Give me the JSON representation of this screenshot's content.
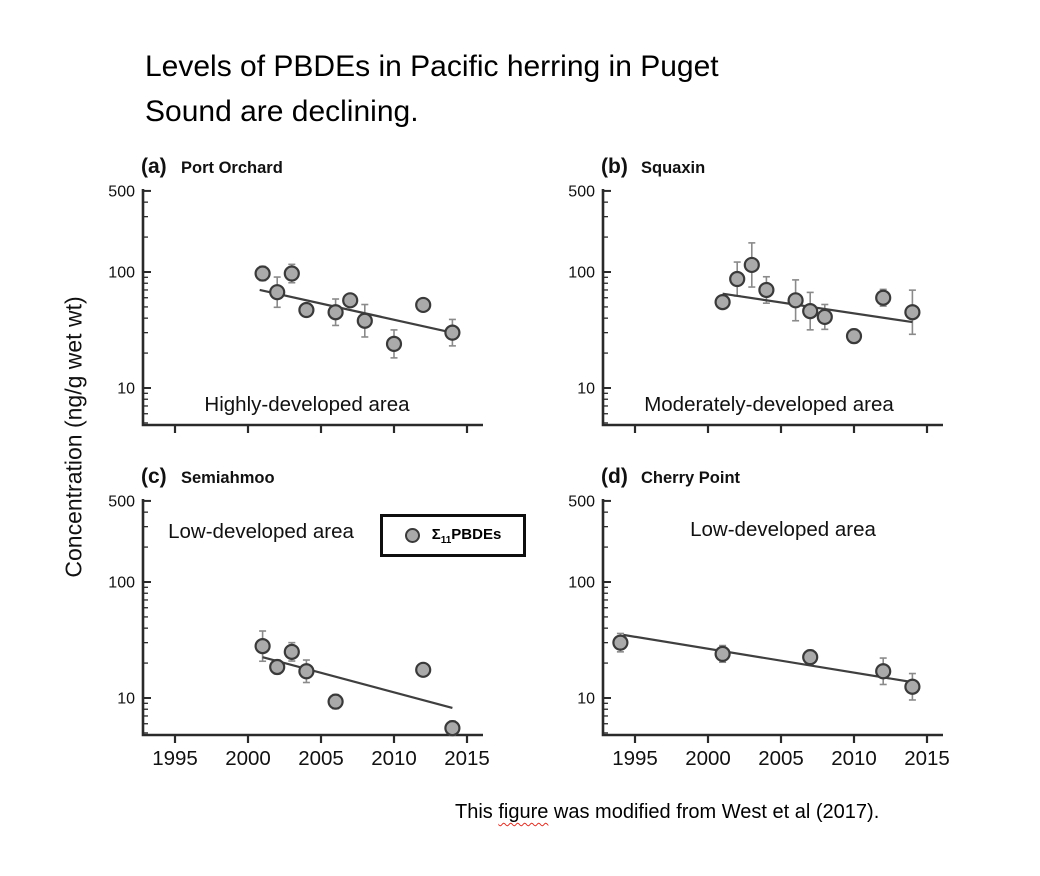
{
  "slide": {
    "title_line1": "Levels of PBDEs in Pacific herring in Puget",
    "title_line2": "Sound are declining.",
    "ylabel": "Concentration (ng/g wet wt)",
    "caption_pre": "This ",
    "caption_word": "figure",
    "caption_post": " was modified from West et al (2017)."
  },
  "legend": {
    "sigma": "Σ",
    "sub": "11",
    "rest": "PBDEs"
  },
  "colors": {
    "marker_fill": "#aaaaaa",
    "marker_stroke": "#3a3a3a",
    "trend_line": "#3f3f3f",
    "error_bar": "#8a8a8a",
    "axis": "#2a2a2a",
    "text": "#111111"
  },
  "chart_data": {
    "type": "scatter",
    "y_scale": "log",
    "ylabel": "Concentration (ng/g wet wt)",
    "x_ticks": [
      1995,
      2000,
      2005,
      2010,
      2015
    ],
    "y_ticks": [
      500,
      100,
      10
    ],
    "y_minor_ticks": [
      400,
      300,
      200,
      90,
      80,
      70,
      60,
      50,
      40,
      30,
      20,
      9,
      8,
      7,
      6,
      5
    ],
    "x_range": [
      1992.8,
      2016.1
    ],
    "y_range": [
      4.8,
      620
    ],
    "grid": false,
    "legend_position": "panel-c-inside",
    "series_name": "Σ11PBDEs",
    "panels": [
      {
        "id": "a",
        "tag": "(a)",
        "name": "Port Orchard",
        "area_label": "Highly-developed area",
        "show_x_labels": false,
        "points": [
          [
            2001,
            97,
            0.15
          ],
          [
            2002,
            67,
            0.35
          ],
          [
            2003,
            97,
            0.2
          ],
          [
            2004,
            47,
            0.12
          ],
          [
            2006,
            45,
            0.3
          ],
          [
            2007,
            57,
            0.12
          ],
          [
            2008,
            38,
            0.38
          ],
          [
            2010,
            24,
            0.32
          ],
          [
            2012,
            52,
            0
          ],
          [
            2014,
            30,
            0.3
          ]
        ],
        "trend": {
          "year1": 2000.8,
          "value1": 70,
          "year2": 2014,
          "value2": 30
        }
      },
      {
        "id": "b",
        "tag": "(b)",
        "name": "Squaxin",
        "area_label": "Moderately-developed area",
        "show_x_labels": false,
        "points": [
          [
            2001,
            55,
            0
          ],
          [
            2002,
            87,
            0.4
          ],
          [
            2003,
            115,
            0.55
          ],
          [
            2004,
            70,
            0.3
          ],
          [
            2006,
            57,
            0.5
          ],
          [
            2007,
            46,
            0.45
          ],
          [
            2008,
            41,
            0.28
          ],
          [
            2010,
            28,
            0.15
          ],
          [
            2012,
            60,
            0.18
          ],
          [
            2014,
            45,
            0.55
          ]
        ],
        "trend": {
          "year1": 2001,
          "value1": 65,
          "year2": 2014,
          "value2": 37
        }
      },
      {
        "id": "c",
        "tag": "(c)",
        "name": "Semiahmoo",
        "area_label": "Low-developed area",
        "show_x_labels": true,
        "points": [
          [
            2001,
            28,
            0.35
          ],
          [
            2002,
            18.5,
            0.15
          ],
          [
            2003,
            25,
            0.2
          ],
          [
            2004,
            17,
            0.25
          ],
          [
            2006,
            9.3,
            0.15
          ],
          [
            2012,
            17.5,
            0
          ],
          [
            2014,
            5.5,
            0.15
          ]
        ],
        "trend": {
          "year1": 2001,
          "value1": 22.5,
          "year2": 2014,
          "value2": 8.2
        }
      },
      {
        "id": "d",
        "tag": "(d)",
        "name": "Cherry Point",
        "area_label": "Low-developed area",
        "show_x_labels": true,
        "points": [
          [
            1994,
            30,
            0.2
          ],
          [
            2001,
            24,
            0.18
          ],
          [
            2007,
            22.5,
            0.15
          ],
          [
            2012,
            17,
            0.3
          ],
          [
            2014,
            12.5,
            0.3
          ]
        ],
        "trend": {
          "year1": 1994.2,
          "value1": 35,
          "year2": 2014,
          "value2": 13.7
        }
      }
    ]
  }
}
